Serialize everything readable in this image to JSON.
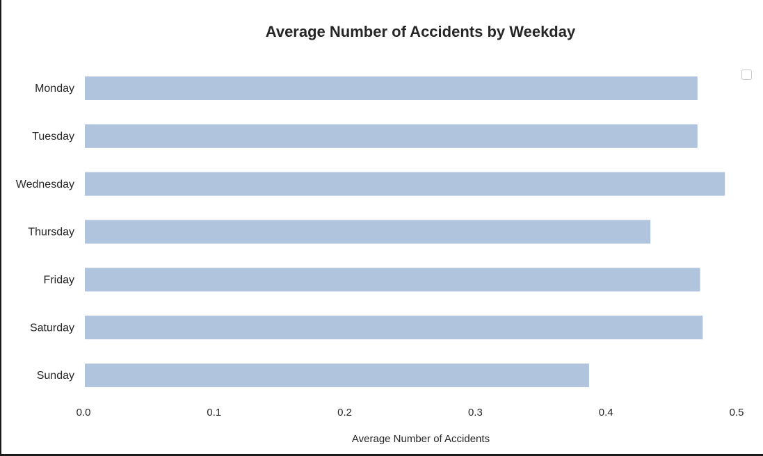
{
  "chart_data": {
    "type": "bar",
    "orientation": "horizontal",
    "title": "Average Number of Accidents by Weekday",
    "xlabel": "Average Number of Accidents",
    "ylabel": "",
    "categories": [
      "Monday",
      "Tuesday",
      "Wednesday",
      "Thursday",
      "Friday",
      "Saturday",
      "Sunday"
    ],
    "values": [
      0.469,
      0.469,
      0.49,
      0.433,
      0.471,
      0.473,
      0.386
    ],
    "xlim": [
      0.0,
      0.5
    ],
    "xticks": [
      "0.0",
      "0.1",
      "0.2",
      "0.3",
      "0.4",
      "0.5"
    ],
    "bar_color": "#b0c4de",
    "grid": false,
    "legend": "top-right"
  }
}
